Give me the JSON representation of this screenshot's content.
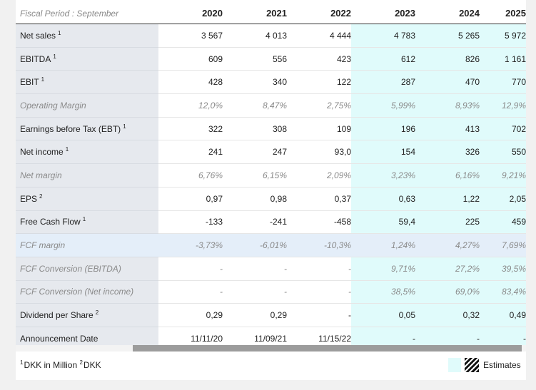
{
  "table": {
    "period_label": "Fiscal Period : September",
    "years": [
      "2020",
      "2021",
      "2022",
      "2023",
      "2024",
      "2025"
    ],
    "estimate_from_index": 3,
    "rows": [
      {
        "label": "Net sales",
        "sup": "1",
        "style": "normal",
        "values": [
          "3 567",
          "4 013",
          "4 444",
          "4 783",
          "5 265",
          "5 972"
        ]
      },
      {
        "label": "EBITDA",
        "sup": "1",
        "style": "normal",
        "values": [
          "609",
          "556",
          "423",
          "612",
          "826",
          "1 161"
        ]
      },
      {
        "label": "EBIT",
        "sup": "1",
        "style": "normal",
        "values": [
          "428",
          "340",
          "122",
          "287",
          "470",
          "770"
        ]
      },
      {
        "label": "Operating Margin",
        "sup": "",
        "style": "italic",
        "values": [
          "12,0%",
          "8,47%",
          "2,75%",
          "5,99%",
          "8,93%",
          "12,9%"
        ]
      },
      {
        "label": "Earnings before Tax (EBT)",
        "sup": "1",
        "style": "normal",
        "values": [
          "322",
          "308",
          "109",
          "196",
          "413",
          "702"
        ]
      },
      {
        "label": "Net income",
        "sup": "1",
        "style": "normal",
        "values": [
          "241",
          "247",
          "93,0",
          "154",
          "326",
          "550"
        ]
      },
      {
        "label": "Net margin",
        "sup": "",
        "style": "italic",
        "values": [
          "6,76%",
          "6,15%",
          "2,09%",
          "3,23%",
          "6,16%",
          "9,21%"
        ]
      },
      {
        "label": "EPS",
        "sup": "2",
        "style": "normal",
        "values": [
          "0,97",
          "0,98",
          "0,37",
          "0,63",
          "1,22",
          "2,05"
        ]
      },
      {
        "label": "Free Cash Flow",
        "sup": "1",
        "style": "normal",
        "values": [
          "-133",
          "-241",
          "-458",
          "59,4",
          "225",
          "459"
        ]
      },
      {
        "label": "FCF margin",
        "sup": "",
        "style": "italic-highlight",
        "values": [
          "-3,73%",
          "-6,01%",
          "-10,3%",
          "1,24%",
          "4,27%",
          "7,69%"
        ]
      },
      {
        "label": "FCF Conversion (EBITDA)",
        "sup": "",
        "style": "italic",
        "values": [
          "-",
          "-",
          "-",
          "9,71%",
          "27,2%",
          "39,5%"
        ]
      },
      {
        "label": "FCF Conversion (Net income)",
        "sup": "",
        "style": "italic",
        "values": [
          "-",
          "-",
          "-",
          "38,5%",
          "69,0%",
          "83,4%"
        ]
      },
      {
        "label": "Dividend per Share",
        "sup": "2",
        "style": "normal",
        "values": [
          "0,29",
          "0,29",
          "-",
          "0,05",
          "0,32",
          "0,49"
        ]
      },
      {
        "label": "Announcement Date",
        "sup": "",
        "style": "normal",
        "values": [
          "11/11/20",
          "11/09/21",
          "11/15/22",
          "-",
          "-",
          "-"
        ]
      }
    ]
  },
  "footer": {
    "note1_sup": "1",
    "note1_text": "DKK in Million",
    "note2_sup": "2",
    "note2_text": "DKK",
    "legend_label": "Estimates"
  },
  "colors": {
    "estimate_bg": "#e0fbfb",
    "label_bg": "#e6e9ee",
    "highlight_row_bg": "#e4eef9",
    "scroll_thumb": "#9c9c9c"
  }
}
